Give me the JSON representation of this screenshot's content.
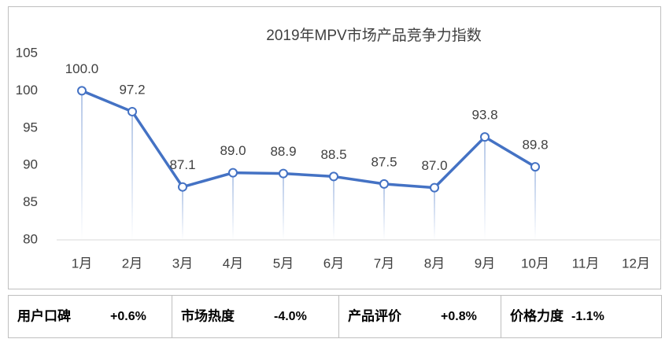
{
  "chart_data": {
    "type": "line",
    "title": "2019年MPV市场产品竞争力指数",
    "categories": [
      "1月",
      "2月",
      "3月",
      "4月",
      "5月",
      "6月",
      "7月",
      "8月",
      "9月",
      "10月",
      "11月",
      "12月"
    ],
    "series": [
      {
        "color": "#4472c4",
        "values": [
          100,
          97.2,
          87.1,
          89,
          88.9,
          88.5,
          87.5,
          87,
          93.8,
          89.8,
          null,
          null
        ],
        "value_labels": [
          "100.0",
          "97.2",
          "87.1",
          "89.0",
          "88.9",
          "88.5",
          "87.5",
          "87.0",
          "93.8",
          "89.8",
          null,
          null
        ]
      }
    ],
    "ylim": [
      80,
      105
    ],
    "yticks": [
      80,
      85,
      90,
      95,
      100,
      105
    ],
    "grid": false
  },
  "footer": [
    {
      "label": "用户口碑",
      "value": "+0.6%"
    },
    {
      "label": "市场热度",
      "value": "-4.0%"
    },
    {
      "label": "产品评价",
      "value": "+0.8%"
    },
    {
      "label": "价格力度",
      "value": "-1.1%"
    }
  ]
}
